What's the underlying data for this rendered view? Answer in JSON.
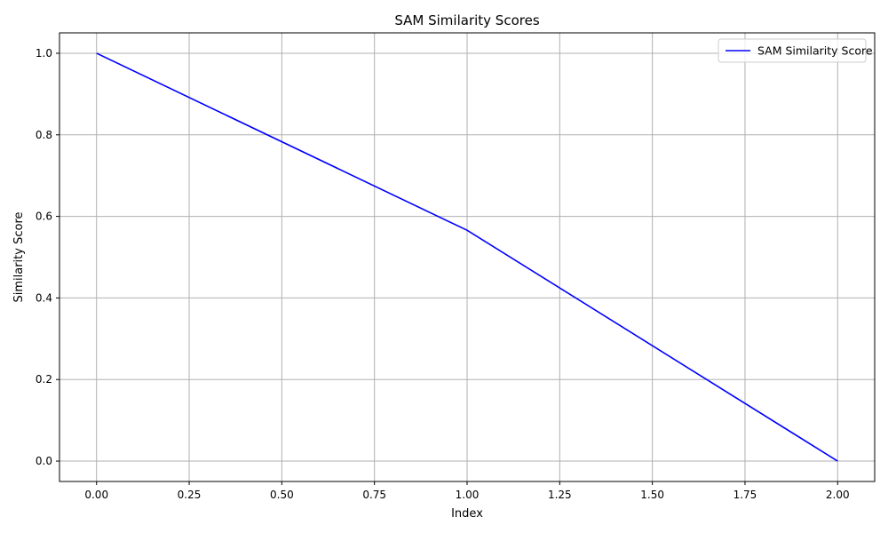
{
  "chart_data": {
    "type": "line",
    "title": "SAM Similarity Scores",
    "xlabel": "Index",
    "ylabel": "Similarity Score",
    "xlim": [
      -0.1,
      2.1
    ],
    "ylim": [
      -0.05,
      1.05
    ],
    "xticks": [
      0.0,
      0.25,
      0.5,
      0.75,
      1.0,
      1.25,
      1.5,
      1.75,
      2.0
    ],
    "xtick_labels": [
      "0.00",
      "0.25",
      "0.50",
      "0.75",
      "1.00",
      "1.25",
      "1.50",
      "1.75",
      "2.00"
    ],
    "yticks": [
      0.0,
      0.2,
      0.4,
      0.6,
      0.8,
      1.0
    ],
    "ytick_labels": [
      "0.0",
      "0.2",
      "0.4",
      "0.6",
      "0.8",
      "1.0"
    ],
    "grid": true,
    "legend_position": "top-right",
    "series": [
      {
        "name": "SAM Similarity Score",
        "color": "#0000ff",
        "x": [
          0,
          1,
          2
        ],
        "y": [
          1.0,
          0.566,
          0.0
        ]
      }
    ]
  }
}
